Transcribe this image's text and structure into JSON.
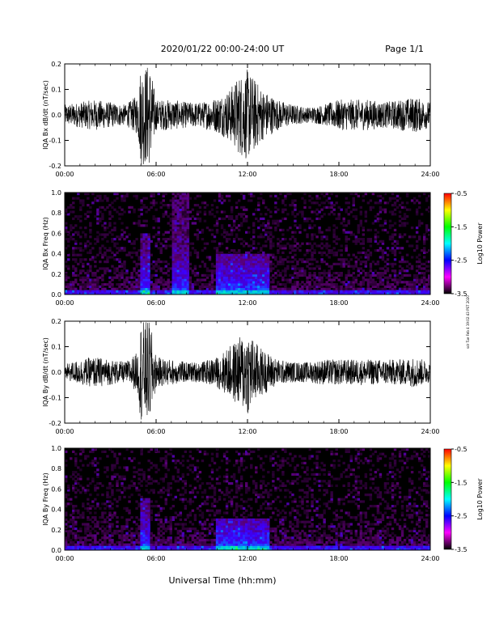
{
  "header": {
    "title": "2020/01/22  00:00-24:00 UT",
    "page_label": "Page 1/1"
  },
  "footer": {
    "xlabel": "Universal Time (hh:mm)"
  },
  "side_note": "sdr Tue Feb 4 19:02:43 PST 2020",
  "x_ticks": [
    "00:00",
    "06:00",
    "12:00",
    "18:00",
    "24:00"
  ],
  "colors": {
    "trace": "#000000",
    "spectrogram_background": "#000000",
    "colorbar": [
      "#ff0000",
      "#ffff00",
      "#00ff00",
      "#00ffff",
      "#0000ff",
      "#ff00ff",
      "#000000"
    ]
  },
  "colorbar": {
    "label": "Log10 Power",
    "ticks": [
      "-0.5",
      "-1.5",
      "-2.5",
      "-3.5"
    ]
  },
  "chart_data": [
    {
      "id": "bx_timeseries",
      "type": "line",
      "ylabel": "IQA Bx dB/dt (nT/sec)",
      "xlim": [
        0,
        24
      ],
      "ylim": [
        -0.2,
        0.2
      ],
      "y_ticks": [
        "0.2",
        "0.1",
        "0.0",
        "-0.1",
        "-0.2"
      ],
      "envelope": {
        "x": [
          0,
          1,
          2,
          3,
          4,
          4.8,
          5.0,
          5.3,
          5.6,
          6,
          7,
          8,
          9,
          10,
          10.8,
          11.5,
          12,
          12.5,
          13,
          14,
          15,
          16,
          17,
          18,
          19,
          20,
          21,
          22,
          23,
          23.5,
          24
        ],
        "y": [
          0.04,
          0.05,
          0.06,
          0.05,
          0.04,
          0.08,
          0.2,
          0.2,
          0.2,
          0.06,
          0.06,
          0.05,
          0.05,
          0.07,
          0.1,
          0.16,
          0.18,
          0.14,
          0.1,
          0.06,
          0.04,
          0.03,
          0.04,
          0.06,
          0.06,
          0.06,
          0.05,
          0.06,
          0.07,
          0.06,
          0.05
        ]
      }
    },
    {
      "id": "bx_spectrogram",
      "type": "heatmap",
      "ylabel": "IQA Bx Freq (Hz)",
      "xlim": [
        0,
        24
      ],
      "ylim": [
        0,
        1.0
      ],
      "y_ticks": [
        "1.0",
        "0.8",
        "0.6",
        "0.4",
        "0.2",
        "0.0"
      ],
      "zlim": [
        -3.5,
        -0.5
      ],
      "bursts": [
        {
          "x0": 4.9,
          "x1": 5.6,
          "fmax": 0.6
        },
        {
          "x0": 7.0,
          "x1": 8.2,
          "fmax": 1.0
        },
        {
          "x0": 10.0,
          "x1": 13.5,
          "fmax": 0.4
        }
      ]
    },
    {
      "id": "by_timeseries",
      "type": "line",
      "ylabel": "IQA By dB/dt (nT/sec)",
      "xlim": [
        0,
        24
      ],
      "ylim": [
        -0.2,
        0.2
      ],
      "y_ticks": [
        "0.2",
        "0.1",
        "0.0",
        "-0.1",
        "-0.2"
      ],
      "envelope": {
        "x": [
          0,
          1,
          2,
          3,
          4,
          4.8,
          5.0,
          5.3,
          5.6,
          6,
          7,
          8,
          9,
          10,
          10.8,
          11.5,
          12,
          12.5,
          13,
          14,
          15,
          16,
          17,
          18,
          19,
          20,
          21,
          22,
          23,
          23.5,
          24
        ],
        "y": [
          0.03,
          0.05,
          0.06,
          0.05,
          0.04,
          0.08,
          0.2,
          0.2,
          0.2,
          0.06,
          0.05,
          0.04,
          0.04,
          0.06,
          0.1,
          0.14,
          0.17,
          0.12,
          0.09,
          0.05,
          0.04,
          0.04,
          0.05,
          0.05,
          0.05,
          0.05,
          0.05,
          0.05,
          0.06,
          0.05,
          0.04
        ]
      }
    },
    {
      "id": "by_spectrogram",
      "type": "heatmap",
      "ylabel": "IQA By Freq (Hz)",
      "xlim": [
        0,
        24
      ],
      "ylim": [
        0,
        1.0
      ],
      "y_ticks": [
        "1.0",
        "0.8",
        "0.6",
        "0.4",
        "0.2",
        "0.0"
      ],
      "zlim": [
        -3.5,
        -0.5
      ],
      "bursts": [
        {
          "x0": 4.9,
          "x1": 5.6,
          "fmax": 0.5
        },
        {
          "x0": 10.0,
          "x1": 13.5,
          "fmax": 0.3
        }
      ]
    }
  ]
}
